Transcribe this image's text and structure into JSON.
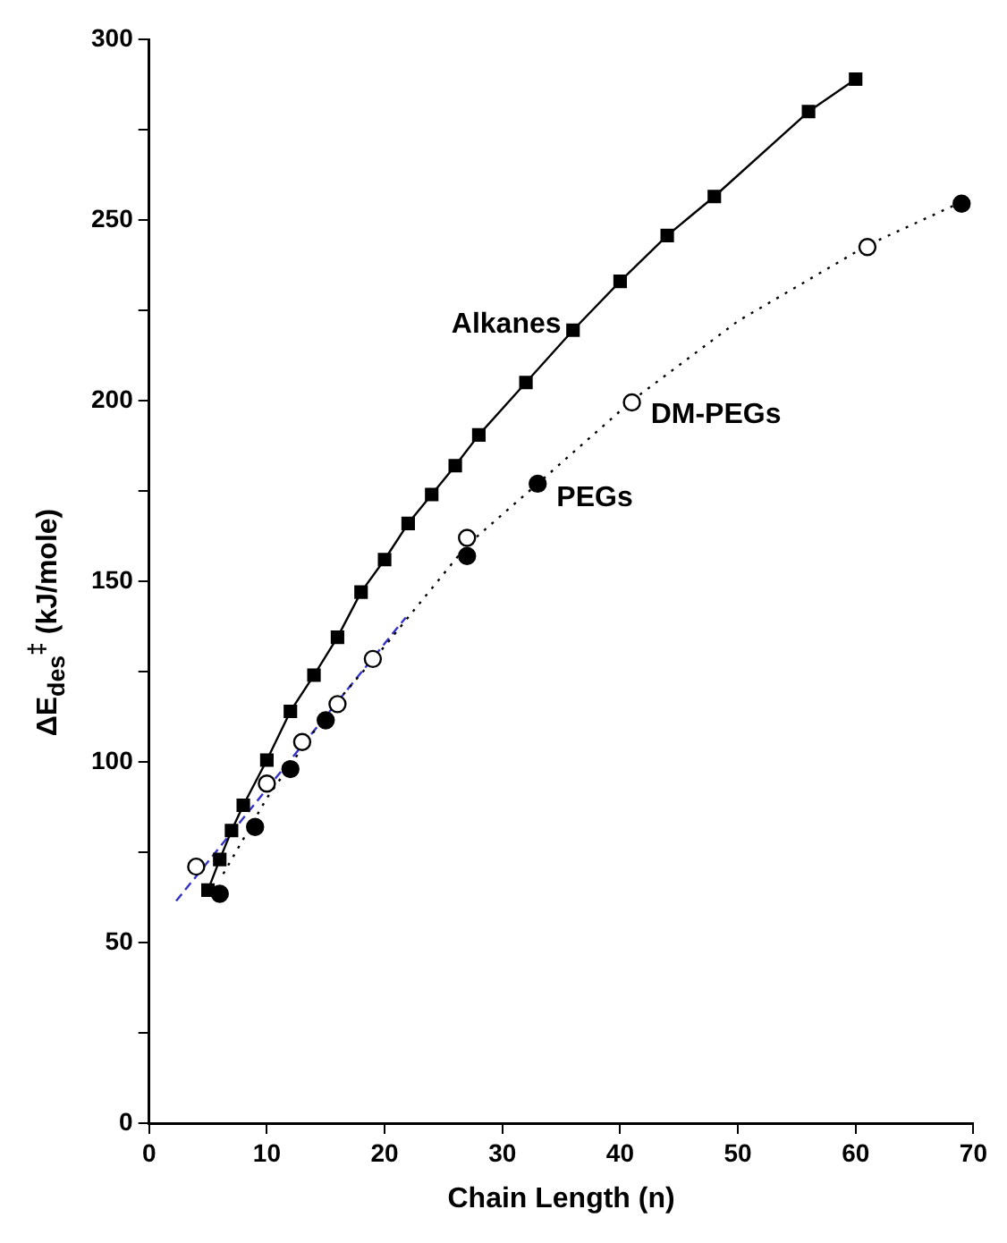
{
  "chart_data": {
    "type": "scatter",
    "xlabel": "Chain Length (n)",
    "ylabel": "ΔE$_{des}$$^{‡}$ (kJ/mole)",
    "xlim": [
      0,
      70
    ],
    "xticks": [
      0,
      10,
      20,
      30,
      40,
      50,
      60,
      70
    ],
    "ylim": [
      0,
      300
    ],
    "yticks": [
      0,
      {
        "value": 25,
        "label": null
      },
      50,
      {
        "value": 75,
        "label": null
      },
      100,
      {
        "value": 125,
        "label": null
      },
      150,
      {
        "value": 175,
        "label": null
      },
      200,
      {
        "value": 225,
        "label": null
      },
      250,
      {
        "value": 275,
        "label": null
      },
      300
    ],
    "grid": false,
    "legend": false,
    "series": [
      {
        "name": "Alkanes",
        "type": "line",
        "color": "#000000",
        "marker": "square",
        "line_style": "solid",
        "x": [
          5,
          6,
          7,
          8,
          10,
          12,
          14,
          16,
          18,
          20,
          22,
          24,
          26,
          28,
          32,
          36,
          40,
          44,
          48,
          56,
          60
        ],
        "values": [
          64.5,
          73,
          81,
          88,
          100.5,
          114,
          124,
          134.5,
          147,
          156,
          166,
          174,
          182,
          190.5,
          205,
          219.5,
          233,
          245.7,
          256.5,
          280,
          289
        ]
      },
      {
        "name": "DM-PEGs",
        "type": "scatter",
        "color": "#000000",
        "marker": "circle",
        "x": [
          4,
          10,
          13,
          16,
          19,
          27,
          41,
          61
        ],
        "values": [
          71,
          94,
          105.5,
          116,
          128.5,
          162,
          199.5,
          242.5
        ]
      },
      {
        "name": "PEGs",
        "type": "scatter",
        "color": "#000000",
        "marker": "circle",
        "x": [
          6,
          9,
          12,
          15,
          27,
          33,
          69
        ],
        "values": [
          63.5,
          82,
          98,
          111.5,
          157,
          177,
          254.5
        ]
      },
      {
        "type": "line",
        "color": "#000000",
        "marker": "none",
        "line_style": "dotted",
        "x": [
          6.3,
          10,
          15,
          20,
          27,
          33,
          41,
          50,
          61,
          69
        ],
        "values": [
          69,
          90,
          113,
          132,
          160,
          177,
          200,
          222,
          243,
          255
        ]
      },
      {
        "type": "line",
        "color": "#3333cc",
        "marker": "none",
        "line_style": "dashed",
        "x": [
          2.3,
          21.8
        ],
        "values": [
          61.5,
          140
        ]
      }
    ]
  }
}
